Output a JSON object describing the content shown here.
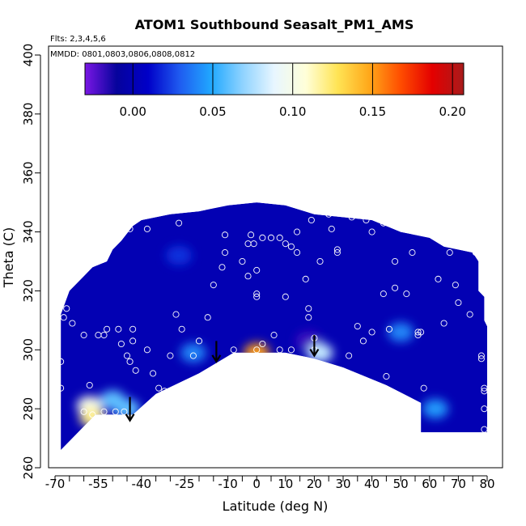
{
  "chart_data": {
    "type": "heatmap",
    "title": "ATOM1 Southbound Seasalt_PM1_AMS",
    "annotations": [
      "Flts: 2,3,4,5,6",
      "MMDD: 0801,0803,0806,0808,0812"
    ],
    "xlabel": "Latitude (deg N)",
    "ylabel": "Theta (C)",
    "xlim": [
      -70,
      80
    ],
    "ylim": [
      260,
      400
    ],
    "x_tick_labels": [
      "-70",
      "-55",
      "-40",
      "-25",
      "-10",
      "0",
      "10",
      "20",
      "30",
      "40",
      "50",
      "60",
      "70",
      "80"
    ],
    "y_tick_labels": [
      "260",
      "280",
      "300",
      "320",
      "340",
      "360",
      "380",
      "400"
    ],
    "grid": false,
    "colorbar": {
      "position": "top-inside",
      "range": [
        -0.03,
        0.207
      ],
      "tick_values": [
        0.0,
        0.05,
        0.1,
        0.15,
        0.2
      ],
      "tick_labels": [
        "0.00",
        "0.05",
        "0.10",
        "0.15",
        "0.20"
      ],
      "colors": [
        "#7a17e5",
        "#06039c",
        "#0000c8",
        "#1f5bf0",
        "#20a8ff",
        "#8fd3ff",
        "#e8f6ff",
        "#ffffd8",
        "#ffe455",
        "#ffa81a",
        "#ff4d00",
        "#e40000",
        "#a81b1b"
      ]
    },
    "field": {
      "background_value": 0.0,
      "outline": [
        [
          -68,
          268
        ],
        [
          -68,
          312
        ],
        [
          -65,
          320
        ],
        [
          -60,
          325
        ],
        [
          -57,
          328
        ],
        [
          -52,
          330
        ],
        [
          -50,
          334
        ],
        [
          -47,
          337
        ],
        [
          -43,
          342
        ],
        [
          -40,
          344
        ],
        [
          -30,
          346
        ],
        [
          -20,
          347
        ],
        [
          -15,
          348
        ],
        [
          -10,
          349
        ],
        [
          0,
          350
        ],
        [
          10,
          349
        ],
        [
          20,
          346
        ],
        [
          30,
          345
        ],
        [
          40,
          344
        ],
        [
          45,
          342
        ],
        [
          50,
          340
        ],
        [
          55,
          339
        ],
        [
          60,
          338
        ],
        [
          65,
          335
        ],
        [
          70,
          334
        ],
        [
          75,
          333
        ],
        [
          77,
          330
        ],
        [
          77,
          320
        ],
        [
          79,
          318
        ],
        [
          79,
          310
        ],
        [
          80,
          308
        ],
        [
          80,
          272
        ],
        [
          57,
          272
        ],
        [
          57,
          282
        ],
        [
          45,
          288
        ],
        [
          30,
          294
        ],
        [
          20,
          297
        ],
        [
          10,
          299
        ],
        [
          0,
          299
        ],
        [
          -8,
          299
        ],
        [
          -20,
          292
        ],
        [
          -35,
          285
        ],
        [
          -43,
          278
        ],
        [
          -48,
          278
        ],
        [
          -56,
          278
        ],
        [
          -58,
          276
        ],
        [
          -64,
          270
        ],
        [
          -68,
          266
        ]
      ],
      "features": [
        {
          "x": -58,
          "y": 281,
          "value": 0.1
        },
        {
          "x": -57,
          "y": 277,
          "value": 0.12
        },
        {
          "x": -45,
          "y": 280,
          "value": 0.06
        },
        {
          "x": -50,
          "y": 283,
          "value": 0.06
        },
        {
          "x": -22,
          "y": 299,
          "value": 0.04
        },
        {
          "x": 0,
          "y": 299,
          "value": 0.15
        },
        {
          "x": 18,
          "y": 303,
          "value": -0.02
        },
        {
          "x": 22,
          "y": 299,
          "value": 0.08
        },
        {
          "x": 50,
          "y": 306,
          "value": 0.04
        },
        {
          "x": 62,
          "y": 280,
          "value": 0.045
        },
        {
          "x": -27,
          "y": 332,
          "value": 0.02
        }
      ]
    },
    "sample_points": [
      [
        -68,
        287
      ],
      [
        -68,
        296
      ],
      [
        -67,
        311
      ],
      [
        -66,
        314
      ],
      [
        -64,
        309
      ],
      [
        -60,
        305
      ],
      [
        -58,
        288
      ],
      [
        -55,
        305
      ],
      [
        -53,
        305
      ],
      [
        -52,
        307
      ],
      [
        -48,
        307
      ],
      [
        -47,
        302
      ],
      [
        -45,
        298
      ],
      [
        -44,
        296
      ],
      [
        -43,
        303
      ],
      [
        -43,
        307
      ],
      [
        -42,
        293
      ],
      [
        -38,
        300
      ],
      [
        -36,
        292
      ],
      [
        -34,
        287
      ],
      [
        -32,
        286
      ],
      [
        -30,
        298
      ],
      [
        -28,
        312
      ],
      [
        -26,
        307
      ],
      [
        -22,
        298
      ],
      [
        -20,
        303
      ],
      [
        -17,
        311
      ],
      [
        -15,
        322
      ],
      [
        -12,
        328
      ],
      [
        -11,
        333
      ],
      [
        -8,
        300
      ],
      [
        -5,
        330
      ],
      [
        -3,
        325
      ],
      [
        0,
        298
      ],
      [
        0,
        300
      ],
      [
        0,
        319
      ],
      [
        0,
        318
      ],
      [
        0,
        327
      ],
      [
        -2,
        339
      ],
      [
        -3,
        336
      ],
      [
        2,
        302
      ],
      [
        6,
        305
      ],
      [
        8,
        300
      ],
      [
        10,
        318
      ],
      [
        12,
        300
      ],
      [
        14,
        333
      ],
      [
        14,
        340
      ],
      [
        14,
        296
      ],
      [
        17,
        324
      ],
      [
        18,
        311
      ],
      [
        18,
        314
      ],
      [
        19,
        344
      ],
      [
        20,
        300
      ],
      [
        20,
        304
      ],
      [
        22,
        330
      ],
      [
        26,
        341
      ],
      [
        28,
        334
      ],
      [
        28,
        333
      ],
      [
        30,
        291
      ],
      [
        32,
        298
      ],
      [
        35,
        308
      ],
      [
        37,
        303
      ],
      [
        40,
        306
      ],
      [
        40,
        340
      ],
      [
        44,
        319
      ],
      [
        45,
        291
      ],
      [
        46,
        307
      ],
      [
        48,
        330
      ],
      [
        48,
        321
      ],
      [
        52,
        319
      ],
      [
        54,
        333
      ],
      [
        56,
        306
      ],
      [
        57,
        306
      ],
      [
        58,
        287
      ],
      [
        63,
        324
      ],
      [
        65,
        309
      ],
      [
        67,
        333
      ],
      [
        69,
        322
      ],
      [
        70,
        316
      ],
      [
        74,
        312
      ],
      [
        76,
        333
      ],
      [
        78,
        297
      ],
      [
        78,
        298
      ],
      [
        79,
        287
      ],
      [
        79,
        286
      ],
      [
        79,
        280
      ],
      [
        79,
        273
      ],
      [
        -44,
        341
      ],
      [
        -38,
        341
      ],
      [
        -27,
        343
      ],
      [
        -11,
        339
      ],
      [
        -1,
        336
      ],
      [
        2,
        338
      ],
      [
        5,
        338
      ],
      [
        8,
        338
      ],
      [
        10,
        336
      ],
      [
        12,
        335
      ],
      [
        25,
        346
      ],
      [
        33,
        345
      ],
      [
        38,
        344
      ],
      [
        44,
        343
      ],
      [
        56,
        305
      ],
      [
        -60,
        279
      ],
      [
        -57,
        278
      ],
      [
        -53,
        279
      ],
      [
        -49,
        279
      ],
      [
        -46,
        279
      ]
    ],
    "arrows": [
      {
        "x": -44,
        "y_from": 284,
        "y_to": 276
      },
      {
        "x": -14,
        "y_from": 303,
        "y_to": 296
      },
      {
        "x": 20,
        "y_from": 305,
        "y_to": 298
      }
    ]
  }
}
